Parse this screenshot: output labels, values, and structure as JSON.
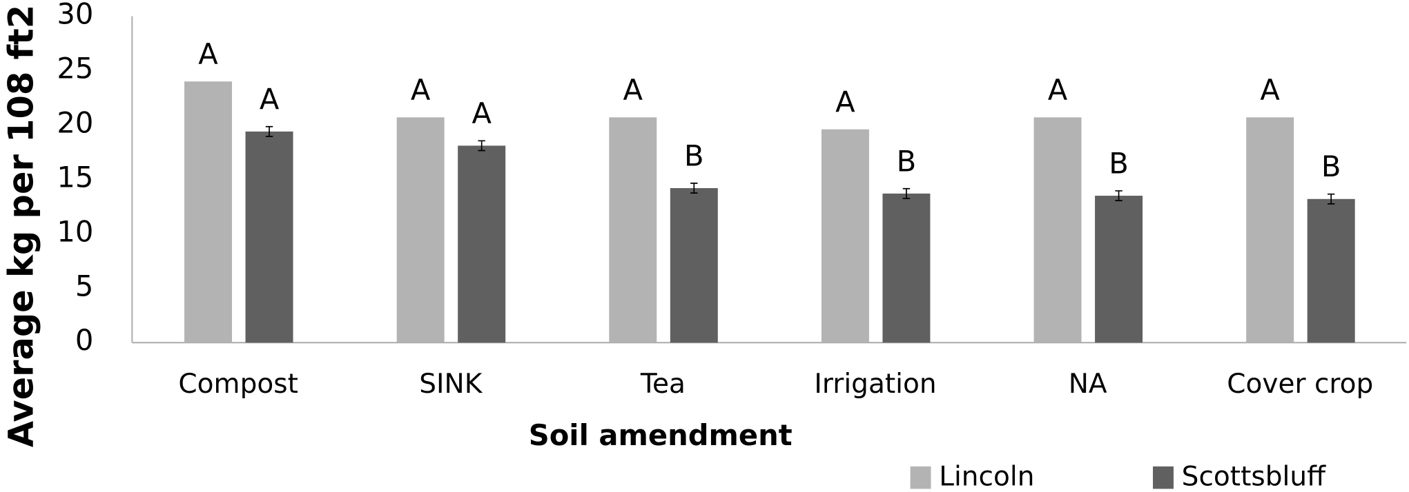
{
  "chart_data": {
    "type": "bar",
    "x_label": "Soil amendment",
    "y_label": "Average kg per 108 ft2",
    "categories": [
      "Compost",
      "SINK",
      "Tea",
      "Irrigation",
      "NA",
      "Cover crop"
    ],
    "series": [
      {
        "name": "Lincoln",
        "color": "#b3b3b3",
        "values": [
          24,
          20.7,
          20.7,
          19.6,
          20.7,
          20.7
        ],
        "letters": [
          "A",
          "A",
          "A",
          "A",
          "A",
          "A"
        ]
      },
      {
        "name": "Scottsbluff",
        "color": "#606060",
        "values": [
          19.4,
          18.1,
          14.2,
          13.7,
          13.5,
          13.2
        ],
        "errors": [
          0.45,
          0.45,
          0.45,
          0.45,
          0.45,
          0.45
        ],
        "letters": [
          "A",
          "A",
          "B",
          "B",
          "B",
          "B"
        ]
      }
    ],
    "ylim": [
      0,
      30
    ],
    "yticks": [
      0,
      5,
      10,
      15,
      20,
      25,
      30
    ],
    "grid": false,
    "legend": "bottom"
  }
}
